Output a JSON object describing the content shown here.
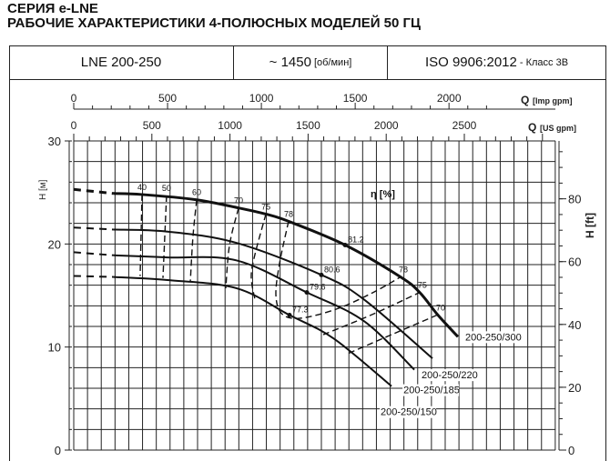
{
  "header": {
    "series": "СЕРИЯ e-LNE",
    "title": "РАБОЧИЕ ХАРАКТЕРИСТИКИ 4-ПОЛЮСНЫХ МОДЕЛЕЙ 50 ГЦ",
    "model": "LNE 200-250",
    "speed": "~ 1450",
    "speed_unit": "[об/мин]",
    "standard": "ISO 9906:2012",
    "standard_class": "- Класс 3B"
  },
  "chart_data": {
    "type": "line",
    "title": "LNE 200-250",
    "x_axes": [
      {
        "label": "Q",
        "unit": "[Imp gpm]",
        "ticks": [
          0,
          500,
          1000,
          1500,
          2000
        ]
      },
      {
        "label": "Q",
        "unit": "[US gpm]",
        "ticks": [
          0,
          500,
          1000,
          1500,
          2000,
          2500
        ]
      }
    ],
    "y_left": {
      "label": "H [м]",
      "ticks": [
        0,
        10,
        20,
        30
      ],
      "ylim": [
        0,
        30
      ]
    },
    "y_right": {
      "label": "H [ft]",
      "ticks": [
        0,
        20,
        40,
        60,
        80
      ]
    },
    "xlim_us_gpm": [
      0,
      3080
    ],
    "eff_label": "η [%]",
    "series": [
      {
        "name": "200-250/300",
        "dashed": [
          [
            0,
            25.3
          ],
          [
            256,
            24.9
          ]
        ],
        "solid": [
          [
            256,
            24.9
          ],
          [
            437,
            24.8
          ],
          [
            781,
            24.3
          ],
          [
            1055,
            23.5
          ],
          [
            1230,
            22.9
          ],
          [
            1375,
            22.2
          ],
          [
            1737,
            19.9
          ],
          [
            2092,
            16.8
          ],
          [
            2214,
            15.3
          ],
          [
            2331,
            13.1
          ],
          [
            2459,
            11.0
          ]
        ],
        "bold": true
      },
      {
        "name": "200-250/220",
        "dashed": [
          [
            0,
            21.6
          ],
          [
            256,
            21.4
          ]
        ],
        "solid": [
          [
            256,
            21.4
          ],
          [
            600,
            21.2
          ],
          [
            1043,
            20.1
          ],
          [
            1585,
            17.0
          ],
          [
            1859,
            14.6
          ],
          [
            2296,
            8.9
          ]
        ]
      },
      {
        "name": "200-250/185",
        "dashed": [
          [
            0,
            19.2
          ],
          [
            256,
            18.9
          ]
        ],
        "solid": [
          [
            256,
            18.9
          ],
          [
            600,
            18.7
          ],
          [
            1043,
            18.4
          ],
          [
            1492,
            15.3
          ],
          [
            1859,
            12.5
          ],
          [
            2180,
            7.8
          ]
        ]
      },
      {
        "name": "200-250/150",
        "dashed": [
          [
            0,
            16.9
          ],
          [
            256,
            16.8
          ]
        ],
        "solid": [
          [
            256,
            16.8
          ],
          [
            600,
            16.5
          ],
          [
            1043,
            15.7
          ],
          [
            1381,
            13.1
          ],
          [
            1666,
            10.8
          ],
          [
            2034,
            6.2
          ]
        ]
      }
    ],
    "efficiency_lines": [
      {
        "value": "40",
        "points": [
          [
            437,
            24.8
          ],
          [
            425,
            16.9
          ]
        ]
      },
      {
        "value": "50",
        "points": [
          [
            594,
            24.7
          ],
          [
            571,
            16.7
          ]
        ]
      },
      {
        "value": "60",
        "points": [
          [
            787,
            24.3
          ],
          [
            763,
            20.7
          ],
          [
            746,
            16.3
          ]
        ]
      },
      {
        "value": "70",
        "points": [
          [
            1055,
            23.5
          ],
          [
            997,
            19.9
          ],
          [
            973,
            15.7
          ]
        ]
      },
      {
        "value": "75",
        "points": [
          [
            1230,
            22.9
          ],
          [
            1160,
            19.0
          ],
          [
            1136,
            16.8
          ],
          [
            1160,
            14.6
          ]
        ]
      },
      {
        "value": "78",
        "points": [
          [
            1375,
            22.2
          ],
          [
            1317,
            18.1
          ],
          [
            1294,
            15.0
          ],
          [
            1334,
            13.2
          ],
          [
            1451,
            12.8
          ],
          [
            1684,
            13.7
          ],
          [
            1917,
            15.3
          ],
          [
            2092,
            16.8
          ]
        ]
      },
      {
        "value": "75",
        "points": [
          [
            1597,
            11.2
          ],
          [
            1917,
            13.2
          ],
          [
            2214,
            15.3
          ]
        ]
      },
      {
        "value": "70",
        "points": [
          [
            1760,
            9.4
          ],
          [
            2034,
            11.2
          ],
          [
            2325,
            13.1
          ]
        ]
      }
    ],
    "best_efficiency_points": [
      {
        "value": "81.2",
        "q": 1737,
        "h": 19.9
      },
      {
        "value": "80.6",
        "q": 1585,
        "h": 17.0
      },
      {
        "value": "79.6",
        "q": 1492,
        "h": 15.3
      },
      {
        "value": "77.3",
        "q": 1381,
        "h": 13.1
      }
    ],
    "efficiency_labels": [
      {
        "value": "40",
        "q": 437,
        "h": 24.8
      },
      {
        "value": "50",
        "q": 594,
        "h": 24.7
      },
      {
        "value": "60",
        "q": 787,
        "h": 24.3
      },
      {
        "value": "70",
        "q": 1055,
        "h": 23.5
      },
      {
        "value": "75",
        "q": 1230,
        "h": 22.9
      },
      {
        "value": "78",
        "q": 1375,
        "h": 22.2
      },
      {
        "value": "78",
        "q": 2092,
        "h": 16.8
      },
      {
        "value": "75",
        "q": 2214,
        "h": 15.3
      },
      {
        "value": "70",
        "q": 2331,
        "h": 13.1
      }
    ]
  }
}
